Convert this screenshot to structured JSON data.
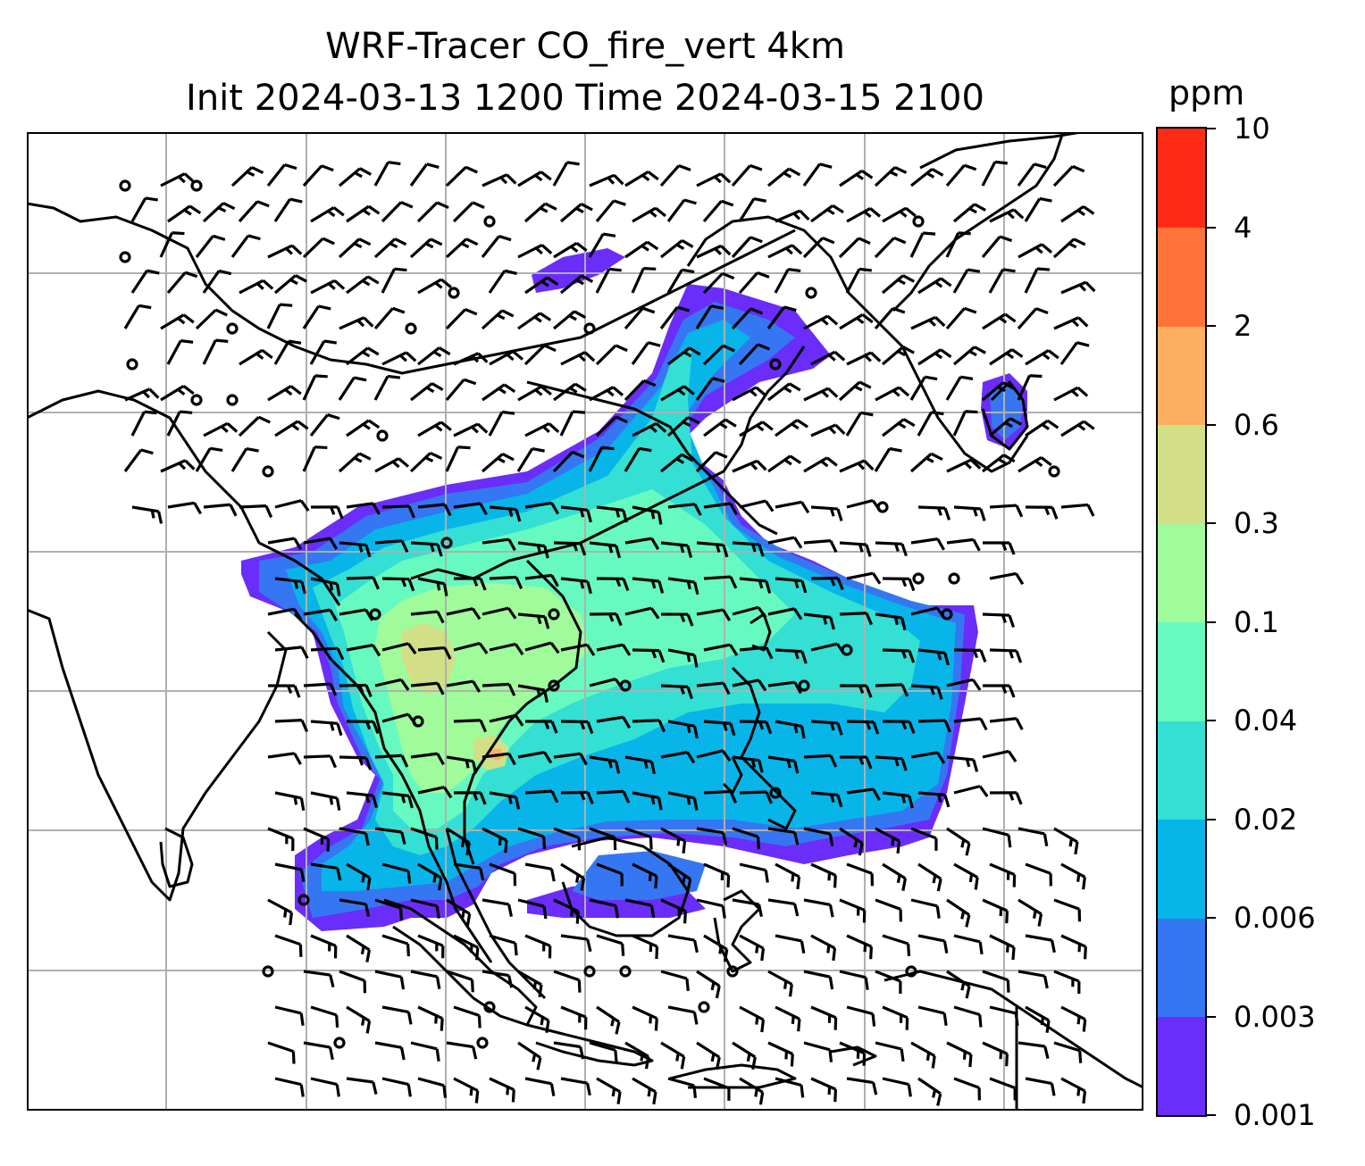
{
  "title_line1": "WRF-Tracer CO_fire_vert 4km",
  "title_line2": "Init 2024-03-13 1200 Time 2024-03-15 2100",
  "chart_data": {
    "type": "heatmap",
    "variable": "CO_fire_vert",
    "colorbar": {
      "unit": "ppm",
      "levels": [
        "0.001",
        "0.003",
        "0.006",
        "0.02",
        "0.04",
        "0.1",
        "0.3",
        "0.6",
        "2",
        "4",
        "10"
      ],
      "colors": [
        "#6a2dfa",
        "#3577f2",
        "#07b5e9",
        "#34dfd4",
        "#67fac0",
        "#a0fb9a",
        "#d3df86",
        "#fdaf62",
        "#ff7339",
        "#ff2b17"
      ]
    },
    "map": {
      "gridlines": true,
      "coastlines": true,
      "wind_barbs": true
    }
  },
  "colors": {
    "coastline": "#000000",
    "gridline": "#b0b0b0",
    "frame": "#000000"
  }
}
